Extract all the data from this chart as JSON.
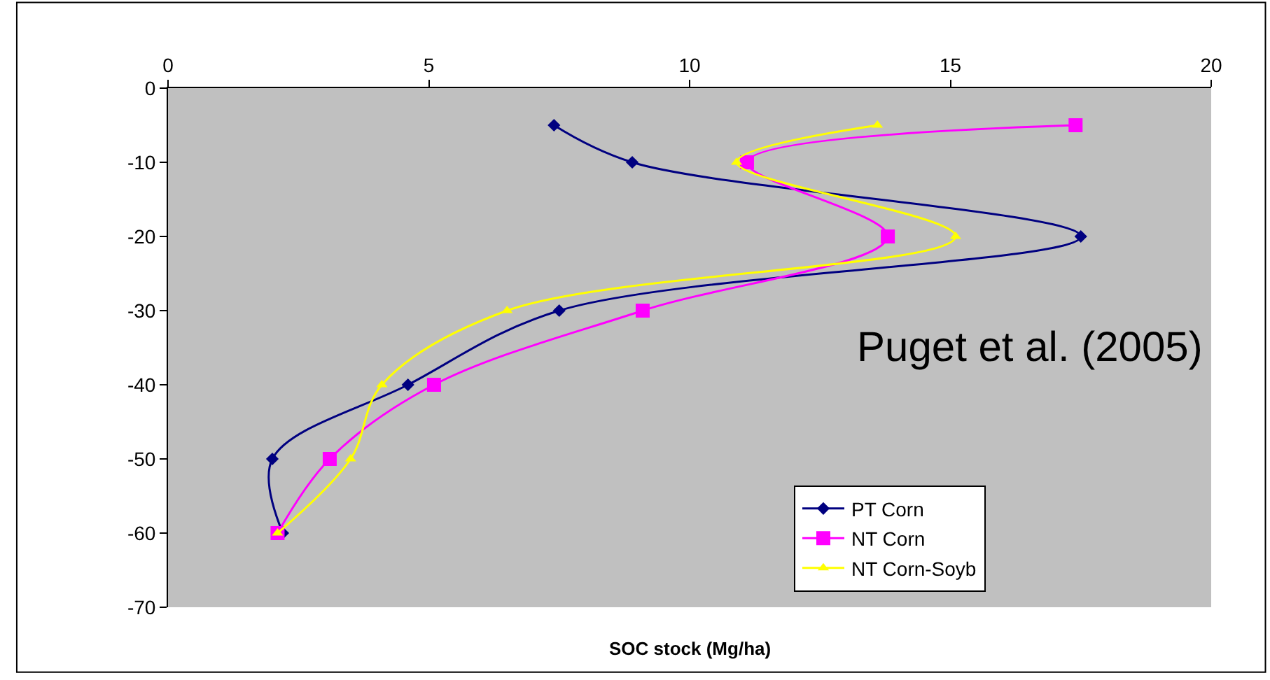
{
  "chart_data": {
    "type": "line",
    "xlabel": "SOC stock (Mg/ha)",
    "annotations": [
      "Puget et al. (2005)"
    ],
    "xlim": [
      0,
      20
    ],
    "xticks": [
      0,
      5,
      10,
      15,
      20
    ],
    "ylim": [
      -70,
      0
    ],
    "yticks": [
      -70,
      -60,
      -50,
      -40,
      -30,
      -20,
      -10,
      0
    ],
    "grid": false,
    "legend": "bottom right",
    "line_style": "solid",
    "series": [
      {
        "name": "PT Corn",
        "color": "#000080",
        "marker": "diamond",
        "x": [
          7.4,
          8.9,
          17.5,
          7.5,
          4.6,
          2.0,
          2.2
        ],
        "values": [
          -5,
          -10,
          -20,
          -30,
          -40,
          -50,
          -60
        ]
      },
      {
        "name": "NT Corn",
        "color": "#ff00ff",
        "marker": "square",
        "x": [
          17.4,
          11.1,
          13.8,
          9.1,
          5.1,
          3.1,
          2.1
        ],
        "values": [
          -5,
          -10,
          -20,
          -30,
          -40,
          -50,
          -60
        ]
      },
      {
        "name": "NT Corn-Soyb",
        "color": "#ffff00",
        "marker": "triangle",
        "x": [
          13.6,
          10.9,
          15.1,
          6.5,
          4.1,
          3.5,
          2.1
        ],
        "values": [
          -5,
          -10,
          -20,
          -30,
          -40,
          -50,
          -60
        ]
      }
    ]
  }
}
